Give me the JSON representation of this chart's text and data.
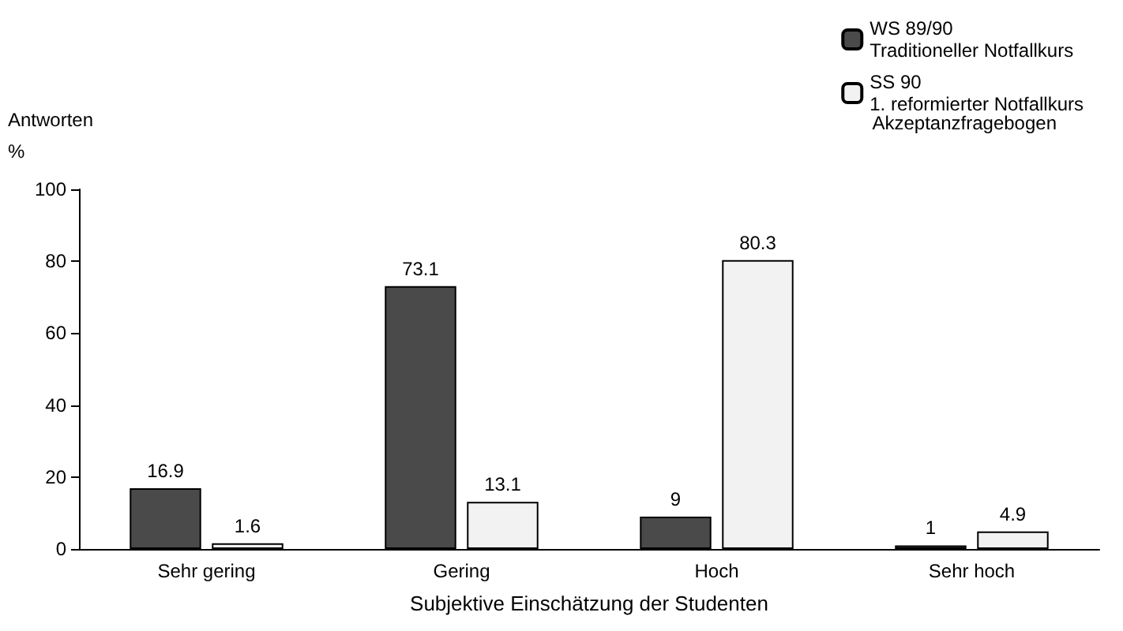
{
  "chart_data": {
    "type": "bar",
    "categories": [
      "Sehr gering",
      "Gering",
      "Hoch",
      "Sehr hoch"
    ],
    "series": [
      {
        "name": "WS 89/90\nTraditioneller Notfallkurs",
        "color": "#4a4a4a",
        "values": [
          16.9,
          73.1,
          9,
          1
        ]
      },
      {
        "name": "SS 90\n1. reformierter Notfallkurs",
        "color": "#f2f2f2",
        "values": [
          1.6,
          13.1,
          80.3,
          4.9
        ]
      }
    ],
    "xlabel": "Subjektive Einschätzung der Studenten",
    "ylabel": "Antworten\n%",
    "legend_title": "Akzeptanzfragebogen",
    "ylim": [
      0,
      100
    ],
    "yticks": [
      0,
      20,
      40,
      60,
      80,
      100
    ],
    "grid": false,
    "legend": "top right",
    "data_labels": true
  }
}
